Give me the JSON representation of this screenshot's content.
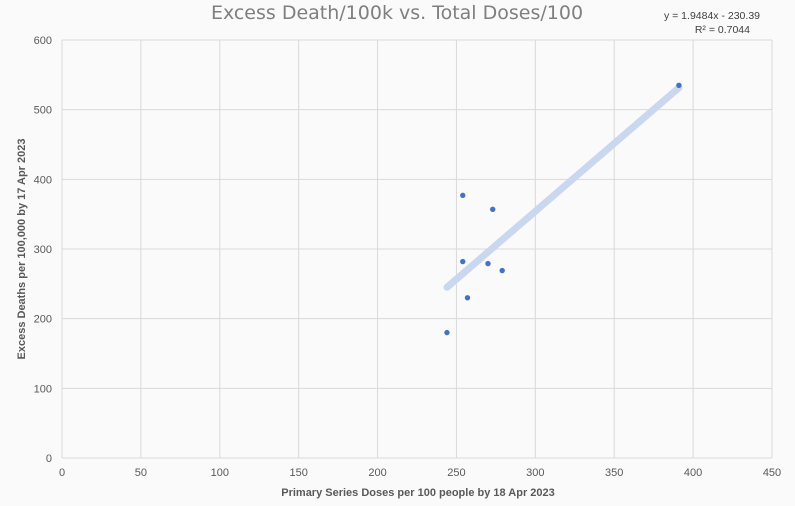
{
  "chart_data": {
    "type": "scatter",
    "title": "Excess Death/100k vs. Total Doses/100",
    "xlabel": "Primary Series Doses per 100 people by 18 Apr 2023",
    "ylabel": "Excess Deaths per 100,000 by 17 Apr 2023",
    "xlim": [
      0,
      450
    ],
    "ylim": [
      0,
      600
    ],
    "x_ticks": [
      0,
      50,
      100,
      150,
      200,
      250,
      300,
      350,
      400,
      450
    ],
    "y_ticks": [
      0,
      100,
      200,
      300,
      400,
      500,
      600
    ],
    "grid": true,
    "legend": "none",
    "points": [
      {
        "x": 244,
        "y": 180
      },
      {
        "x": 254,
        "y": 377
      },
      {
        "x": 254,
        "y": 282
      },
      {
        "x": 257,
        "y": 230
      },
      {
        "x": 270,
        "y": 279
      },
      {
        "x": 273,
        "y": 357
      },
      {
        "x": 279,
        "y": 269
      },
      {
        "x": 391,
        "y": 535
      }
    ],
    "trendline": {
      "type": "linear",
      "slope": 1.9484,
      "intercept": -230.39,
      "x_range": [
        244,
        391
      ],
      "equation_label": "y = 1.9484x - 230.39",
      "r2_label": "R² = 0.7044"
    },
    "colors": {
      "points": "#4472c4",
      "trendline": "#c9d7ef",
      "grid": "#d9d9d9",
      "title": "#7f7f7f",
      "text": "#595959"
    }
  }
}
